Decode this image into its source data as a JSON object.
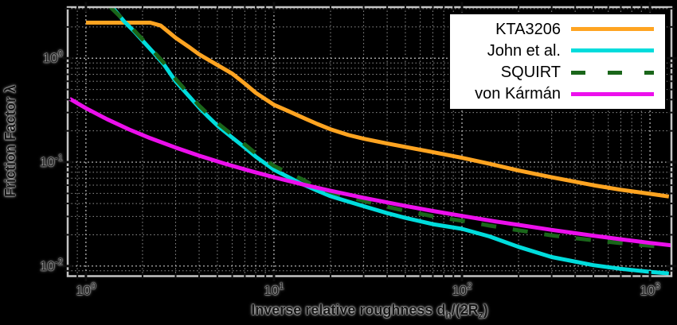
{
  "figure": {
    "background": "#000000",
    "legend_border_color": "#000000",
    "legend_background": "#ffffff"
  },
  "chart_data": {
    "type": "line",
    "title": "",
    "xlabel_parts": [
      {
        "t": "Inverse relative roughness d"
      },
      {
        "sub": "h"
      },
      {
        "t": "/(2R"
      },
      {
        "sub": "z"
      },
      {
        "t": ")"
      }
    ],
    "ylabel": "Friction Factor λ",
    "x_scale": "log",
    "y_scale": "log",
    "xlim": [
      0.8,
      1300
    ],
    "ylim": [
      0.008,
      3.1
    ],
    "grid": true,
    "legend_position": "top-right",
    "x_ticks": [
      {
        "v": 1,
        "base": "10",
        "exp": "0"
      },
      {
        "v": 10,
        "base": "10",
        "exp": "1"
      },
      {
        "v": 100,
        "base": "10",
        "exp": "2"
      },
      {
        "v": 1000,
        "base": "10",
        "exp": "3"
      }
    ],
    "y_ticks": [
      {
        "v": 1,
        "base": "10",
        "exp": "0"
      },
      {
        "v": 0.1,
        "base": "10",
        "exp": "-1"
      },
      {
        "v": 0.01,
        "base": "10",
        "exp": "-2"
      }
    ],
    "series": [
      {
        "name": "KTA3206",
        "color": "#FFA421",
        "dash": "solid",
        "x": [
          1,
          2.2,
          2.5,
          3,
          3.5,
          4,
          5,
          6,
          7,
          8,
          10,
          12,
          14,
          17,
          20,
          25,
          30,
          40,
          50,
          70,
          100,
          140,
          200,
          300,
          500,
          700,
          1000,
          1260
        ],
        "y": [
          2.2,
          2.2,
          2.06,
          1.57,
          1.3,
          1.09,
          0.86,
          0.71,
          0.57,
          0.465,
          0.356,
          0.308,
          0.272,
          0.233,
          0.207,
          0.182,
          0.168,
          0.151,
          0.14,
          0.125,
          0.11,
          0.0965,
          0.083,
          0.0715,
          0.06,
          0.0542,
          0.0496,
          0.0467
        ]
      },
      {
        "name": "John et al.",
        "color": "#00DCDC",
        "dash": "solid",
        "x": [
          1.38,
          1.6,
          1.8,
          2,
          2.3,
          2.6,
          3,
          3.5,
          4,
          4.5,
          5,
          6,
          7,
          8,
          10,
          12,
          14,
          17,
          20,
          25,
          30,
          40,
          50,
          70,
          100,
          140,
          200,
          300,
          500,
          700,
          1000,
          1260
        ],
        "y": [
          3.1,
          2.25,
          1.82,
          1.48,
          1.12,
          0.87,
          0.6,
          0.44,
          0.335,
          0.27,
          0.225,
          0.172,
          0.138,
          0.113,
          0.0845,
          0.0715,
          0.062,
          0.0532,
          0.047,
          0.0416,
          0.0377,
          0.0323,
          0.0291,
          0.0253,
          0.0228,
          0.0193,
          0.0153,
          0.0122,
          0.0102,
          0.0094,
          0.0088,
          0.0085
        ]
      },
      {
        "name": "SQUIRT",
        "color": "#1A661A",
        "dash": "dashed",
        "x": [
          1.35,
          1.6,
          1.8,
          2,
          2.3,
          2.6,
          3,
          3.5,
          4,
          4.5,
          5,
          6,
          7,
          8,
          10,
          12,
          14,
          17,
          20,
          25,
          30,
          40,
          50,
          70,
          100,
          140,
          200,
          300,
          500,
          700,
          1000,
          1260
        ],
        "y": [
          3.1,
          2.3,
          1.86,
          1.52,
          1.15,
          0.9,
          0.63,
          0.46,
          0.35,
          0.285,
          0.238,
          0.183,
          0.148,
          0.121,
          0.092,
          0.0782,
          0.069,
          0.057,
          0.0515,
          0.0462,
          0.0424,
          0.0372,
          0.034,
          0.0301,
          0.0273,
          0.0245,
          0.0221,
          0.0197,
          0.0177,
          0.0166,
          0.0157,
          0.0151
        ]
      },
      {
        "name": "von Kármán",
        "color": "#EC0FEC",
        "dash": "solid",
        "x": [
          0.82,
          1,
          1.3,
          1.7,
          2.2,
          3,
          4,
          5.5,
          7.5,
          10,
          14,
          20,
          30,
          50,
          70,
          100,
          150,
          200,
          300,
          500,
          700,
          1000,
          1300
        ],
        "y": [
          0.407,
          0.33,
          0.258,
          0.206,
          0.17,
          0.138,
          0.1154,
          0.0964,
          0.0821,
          0.0715,
          0.0615,
          0.053,
          0.0454,
          0.0379,
          0.0339,
          0.0304,
          0.0269,
          0.0249,
          0.0223,
          0.0196,
          0.0181,
          0.0167,
          0.0158
        ]
      }
    ]
  }
}
